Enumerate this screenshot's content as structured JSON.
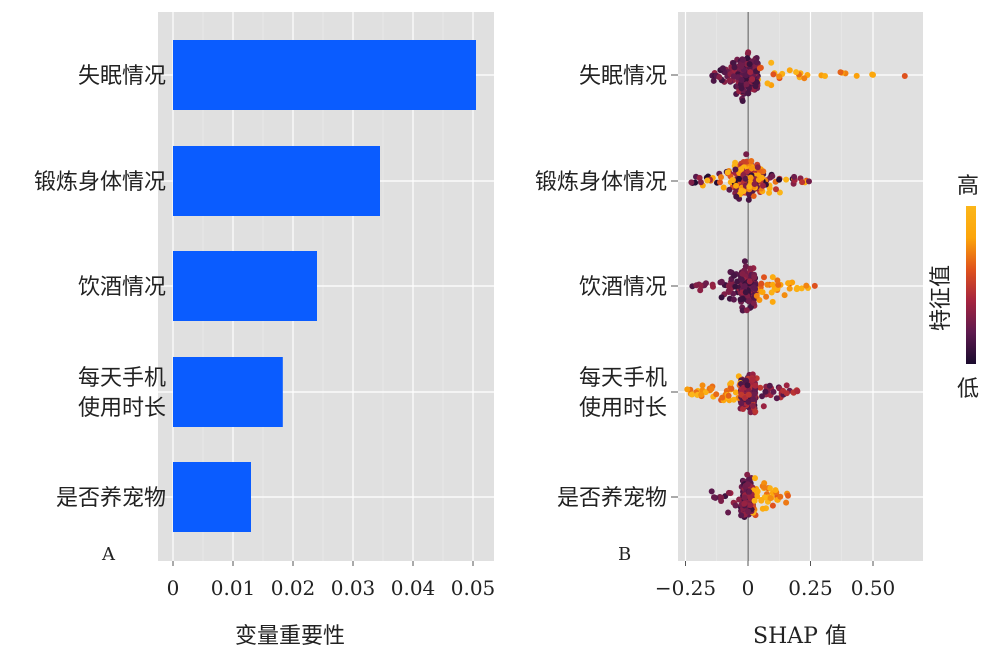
{
  "chart_data": [
    {
      "panel": "A",
      "type": "bar",
      "orientation": "horizontal",
      "categories": [
        "失眠情况",
        "锻炼身体情况",
        "饮酒情况",
        "每天手机\n使用时长",
        "是否养宠物"
      ],
      "values": [
        0.0505,
        0.0345,
        0.024,
        0.0183,
        0.013
      ],
      "xlabel": "变量重要性",
      "xlim": [
        -0.0025,
        0.0535
      ],
      "xticks": [
        0,
        0.01,
        0.02,
        0.03,
        0.04,
        0.05
      ],
      "xtick_labels": [
        "0",
        "0.01",
        "0.02",
        "0.03",
        "0.04",
        "0.05"
      ],
      "bar_color": "#0a5cff",
      "background": "#e0e0e0",
      "grid": true
    },
    {
      "panel": "B",
      "type": "scatter",
      "subtype": "beeswarm",
      "categories": [
        "失眠情况",
        "锻炼身体情况",
        "饮酒情况",
        "每天手机\n使用时长",
        "是否养宠物"
      ],
      "xlabel": "SHAP 值",
      "xlim": [
        -0.28,
        0.7
      ],
      "xticks": [
        -0.25,
        0,
        0.25,
        0.5
      ],
      "xtick_labels": [
        "−0.25",
        "0",
        "0.25",
        "0.50"
      ],
      "background": "#e0e0e0",
      "grid": true,
      "zero_line": true,
      "series": [
        {
          "category": "失眠情况",
          "shap_min": -0.15,
          "shap_max": 0.65,
          "core_range": [
            -0.04,
            0.04
          ],
          "high_feature_side": "positive"
        },
        {
          "category": "锻炼身体情况",
          "shap_min": -0.23,
          "shap_max": 0.25,
          "core_range": [
            -0.05,
            0.06
          ],
          "high_feature_side": "mixed"
        },
        {
          "category": "饮酒情况",
          "shap_min": -0.23,
          "shap_max": 0.28,
          "core_range": [
            -0.03,
            0.03
          ],
          "high_feature_side": "positive"
        },
        {
          "category": "每天手机\n使用时长",
          "shap_min": -0.25,
          "shap_max": 0.21,
          "core_range": [
            -0.03,
            0.03
          ],
          "high_feature_side": "negative"
        },
        {
          "category": "是否养宠物",
          "shap_min": -0.15,
          "shap_max": 0.17,
          "core_range": [
            -0.02,
            0.02
          ],
          "high_feature_side": "positive"
        }
      ],
      "colorbar": {
        "title": "特征值",
        "high_label": "高",
        "low_label": "低",
        "colors": [
          "#1a0b2e",
          "#5e1a4e",
          "#a5243f",
          "#e0531c",
          "#fca50a",
          "#fbb61a"
        ]
      }
    }
  ],
  "panel_tags": {
    "a": "A",
    "b": "B"
  }
}
